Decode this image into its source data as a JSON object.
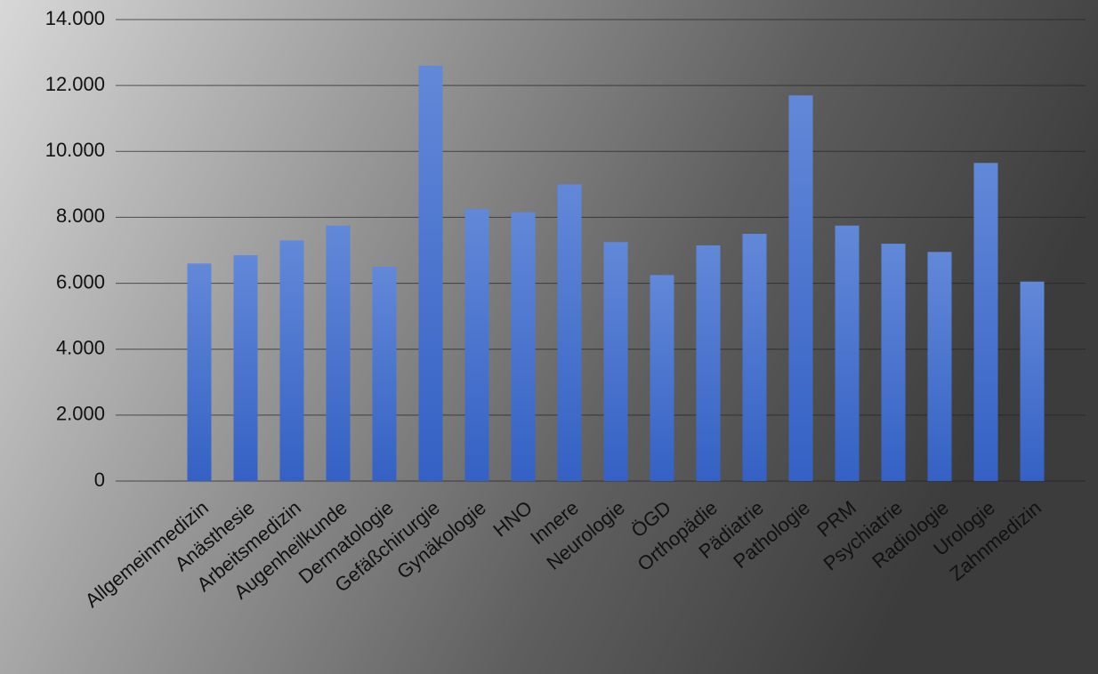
{
  "chart_data": {
    "type": "bar",
    "categories": [
      "Allgemeinmedizin",
      "Anästhesie",
      "Arbeitsmedizin",
      "Augenheilkunde",
      "Dermatologie",
      "Gefäßchirurgie",
      "Gynäkologie",
      "HNO",
      "Innere",
      "Neurologie",
      "ÖGD",
      "Orthopädie",
      "Pädiatrie",
      "Pathologie",
      "PRM",
      "Psychiatrie",
      "Radiologie",
      "Urologie",
      "Zahnmedizin"
    ],
    "values": [
      6600,
      6850,
      7300,
      7750,
      6500,
      12600,
      8250,
      8150,
      9000,
      7250,
      6250,
      7150,
      7500,
      11700,
      7750,
      7200,
      6950,
      9650,
      6050
    ],
    "color": "#4a74d0",
    "ylim": [
      0,
      14000
    ],
    "yticks": [
      0,
      {
        "value": 2000,
        "label": "2.000"
      },
      {
        "value": 4000,
        "label": "4.000"
      },
      {
        "value": 6000,
        "label": "6.000"
      },
      {
        "value": 8000,
        "label": "8.000"
      },
      {
        "value": 10000,
        "label": "10.000"
      },
      {
        "value": 12000,
        "label": "12.000"
      },
      {
        "value": 14000,
        "label": "14.000"
      }
    ],
    "grid": true
  }
}
